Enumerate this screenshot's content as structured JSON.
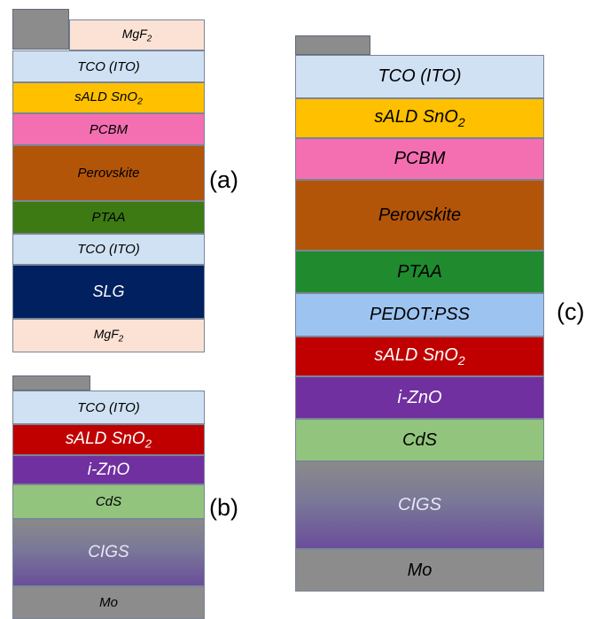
{
  "panels": {
    "a": {
      "label": "(a)",
      "layers": [
        {
          "name": "mgf2-top",
          "text": "MgF",
          "sub": "2",
          "color": "#fbe2d5"
        },
        {
          "name": "tco-ito",
          "text": "TCO (ITO)",
          "sub": "",
          "color": "#cfe1f2"
        },
        {
          "name": "sald-sno2",
          "text": "sALD SnO",
          "sub": "2",
          "color": "#ffc000"
        },
        {
          "name": "pcbm",
          "text": "PCBM",
          "sub": "",
          "color": "#f46fb1"
        },
        {
          "name": "perovskite",
          "text": "Perovskite",
          "sub": "",
          "color": "#b35509"
        },
        {
          "name": "ptaa",
          "text": "PTAA",
          "sub": "",
          "color": "#3d7a14"
        },
        {
          "name": "tco-ito-bottom",
          "text": "TCO (ITO)",
          "sub": "",
          "color": "#cfe1f2"
        },
        {
          "name": "slg",
          "text": "SLG",
          "sub": "",
          "color": "#002060"
        },
        {
          "name": "mgf2-bottom",
          "text": "MgF",
          "sub": "2",
          "color": "#fbe2d5"
        }
      ]
    },
    "b": {
      "label": "(b)",
      "layers": [
        {
          "name": "tco-ito",
          "text": "TCO (ITO)",
          "sub": "",
          "color": "#cfe1f2"
        },
        {
          "name": "sald-sno2",
          "text": "sALD SnO",
          "sub": "2",
          "color": "#c00000"
        },
        {
          "name": "i-zno",
          "text": "i-ZnO",
          "sub": "",
          "color": "#7030a0"
        },
        {
          "name": "cds",
          "text": "CdS",
          "sub": "",
          "color": "#92c47d"
        },
        {
          "name": "cigs",
          "text": "CIGS",
          "sub": "",
          "color": "#7a6a9a"
        },
        {
          "name": "mo",
          "text": "Mo",
          "sub": "",
          "color": "#8c8c8c"
        }
      ]
    },
    "c": {
      "label": "(c)",
      "layers": [
        {
          "name": "tco-ito",
          "text": "TCO (ITO)",
          "sub": "",
          "color": "#cfe1f2"
        },
        {
          "name": "sald-sno2-top",
          "text": "sALD SnO",
          "sub": "2",
          "color": "#ffc000"
        },
        {
          "name": "pcbm",
          "text": "PCBM",
          "sub": "",
          "color": "#f46fb1"
        },
        {
          "name": "perovskite",
          "text": "Perovskite",
          "sub": "",
          "color": "#b35509"
        },
        {
          "name": "ptaa",
          "text": "PTAA",
          "sub": "",
          "color": "#1f8a2e"
        },
        {
          "name": "pedot-pss",
          "text": "PEDOT:PSS",
          "sub": "",
          "color": "#9dc3f0"
        },
        {
          "name": "sald-sno2-bottom",
          "text": "sALD SnO",
          "sub": "2",
          "color": "#c00000"
        },
        {
          "name": "i-zno",
          "text": "i-ZnO",
          "sub": "",
          "color": "#7030a0"
        },
        {
          "name": "cds",
          "text": "CdS",
          "sub": "",
          "color": "#92c47d"
        },
        {
          "name": "cigs",
          "text": "CIGS",
          "sub": "",
          "color": "#7a6a9a"
        },
        {
          "name": "mo",
          "text": "Mo",
          "sub": "",
          "color": "#8c8c8c"
        }
      ]
    }
  }
}
